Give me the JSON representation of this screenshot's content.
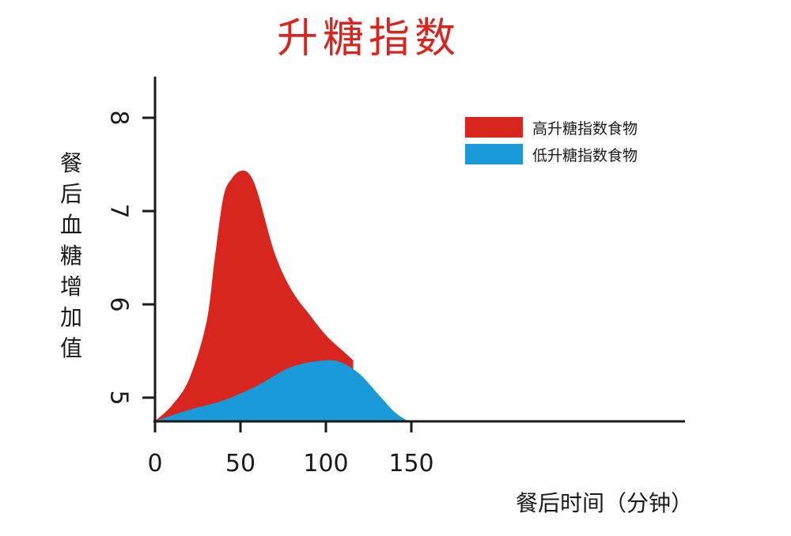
{
  "colors": {
    "title": "#d8261f",
    "high": "#d8261f",
    "low": "#1b9ad9",
    "axis": "#1a1a1a"
  },
  "chart_data": {
    "type": "area",
    "title": "升糖指数",
    "xlabel": "餐后时间（分钟）",
    "ylabel": "餐后血糖增加值",
    "xlim": [
      0,
      175
    ],
    "ylim": [
      4.75,
      8.5
    ],
    "xticks": [
      "0",
      "50",
      "100",
      "150"
    ],
    "yticks": [
      "5",
      "6",
      "7",
      "8"
    ],
    "grid": false,
    "legend_position": "top-right",
    "series": [
      {
        "name": "高升糖指数食物",
        "color": "#d8261f",
        "x": [
          0,
          10,
          20,
          30,
          35,
          40,
          45,
          50,
          55,
          60,
          70,
          80,
          90,
          100,
          110,
          116
        ],
        "y": [
          4.75,
          4.92,
          5.2,
          5.8,
          6.5,
          7.15,
          7.35,
          7.43,
          7.4,
          7.2,
          6.55,
          6.15,
          5.9,
          5.67,
          5.5,
          5.4
        ]
      },
      {
        "name": "低升糖指数食物",
        "color": "#1b9ad9",
        "x": [
          0,
          20,
          40,
          60,
          80,
          100,
          110,
          120,
          130,
          140,
          148
        ],
        "y": [
          4.75,
          4.87,
          4.97,
          5.13,
          5.33,
          5.4,
          5.37,
          5.25,
          5.05,
          4.85,
          4.75
        ]
      }
    ]
  }
}
